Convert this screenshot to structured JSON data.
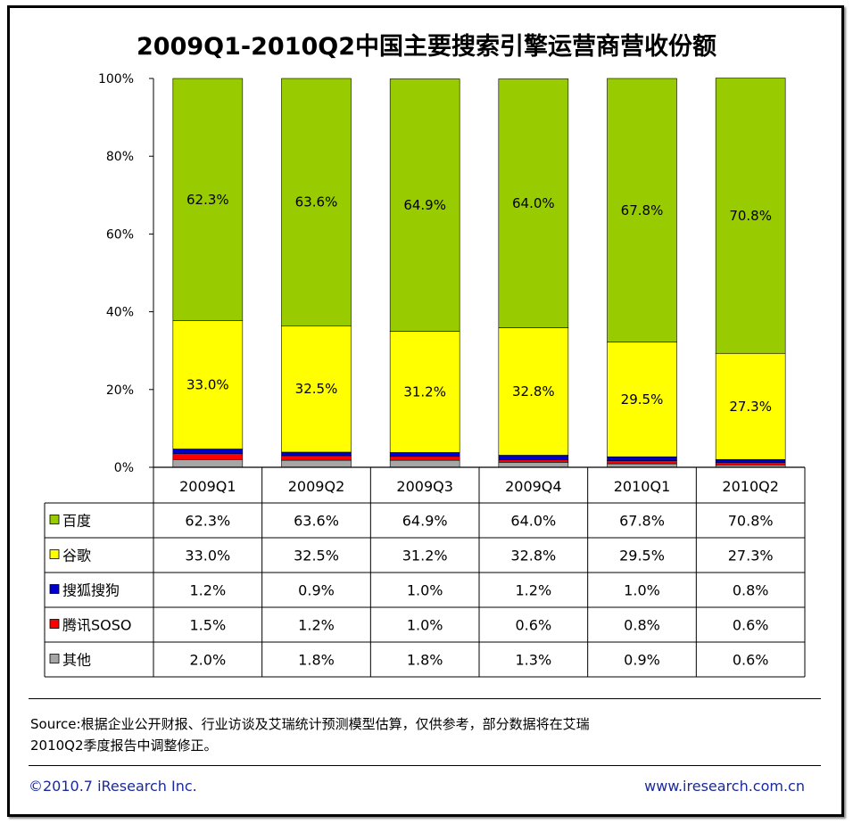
{
  "title": "2009Q1-2010Q2中国主要搜索引擎运营商营收份额",
  "chart_data": {
    "type": "bar",
    "stacked": true,
    "categories": [
      "2009Q1",
      "2009Q2",
      "2009Q3",
      "2009Q4",
      "2010Q1",
      "2010Q2"
    ],
    "y_ticks": [
      "0%",
      "20%",
      "40%",
      "60%",
      "80%",
      "100%"
    ],
    "ylim": [
      0,
      100
    ],
    "series": [
      {
        "name": "其他",
        "color": "#a6a6a6",
        "values": [
          2.0,
          1.8,
          1.8,
          1.3,
          0.9,
          0.6
        ],
        "labels": [
          "2.0%",
          "1.8%",
          "1.8%",
          "1.3%",
          "0.9%",
          "0.6%"
        ]
      },
      {
        "name": "腾讯SOSO",
        "color": "#ff0000",
        "values": [
          1.5,
          1.2,
          1.0,
          0.6,
          0.8,
          0.6
        ],
        "labels": [
          "1.5%",
          "1.2%",
          "1.0%",
          "0.6%",
          "0.8%",
          "0.6%"
        ]
      },
      {
        "name": "搜狐搜狗",
        "color": "#0000cc",
        "values": [
          1.2,
          0.9,
          1.0,
          1.2,
          1.0,
          0.8
        ],
        "labels": [
          "1.2%",
          "0.9%",
          "1.0%",
          "1.2%",
          "1.0%",
          "0.8%"
        ]
      },
      {
        "name": "谷歌",
        "color": "#ffff00",
        "values": [
          33.0,
          32.5,
          31.2,
          32.8,
          29.5,
          27.3
        ],
        "labels": [
          "33.0%",
          "32.5%",
          "31.2%",
          "32.8%",
          "29.5%",
          "27.3%"
        ]
      },
      {
        "name": "百度",
        "color": "#99cc00",
        "values": [
          62.3,
          63.6,
          64.9,
          64.0,
          67.8,
          70.8
        ],
        "labels": [
          "62.3%",
          "63.6%",
          "64.9%",
          "64.0%",
          "67.8%",
          "70.8%"
        ]
      }
    ],
    "table_rows_order": [
      "百度",
      "谷歌",
      "搜狐搜狗",
      "腾讯SOSO",
      "其他"
    ],
    "bar_labels_for": [
      "百度",
      "谷歌"
    ]
  },
  "source": {
    "line1": "Source:根据企业公开财报、行业访谈及艾瑞统计预测模型估算，仅供参考，部分数据将在艾瑞",
    "line2": "2010Q2季度报告中调整修正。"
  },
  "footer": {
    "copyright": "©2010.7 iResearch Inc.",
    "website": "www.iresearch.com.cn"
  }
}
